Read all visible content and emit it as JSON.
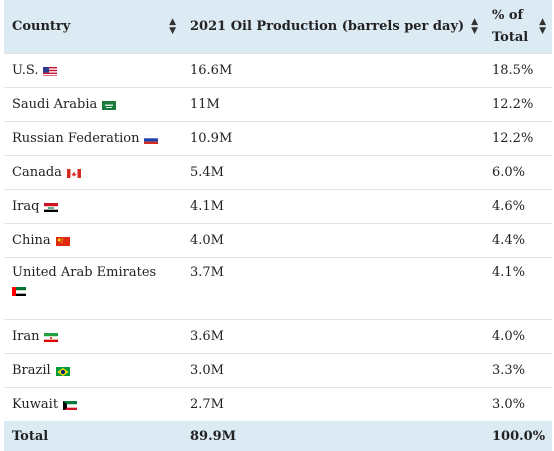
{
  "table": {
    "headers": {
      "country": "Country",
      "production": "2021 Oil Production (barrels per day)",
      "percent": "% of Total"
    },
    "rows": [
      {
        "country": "U.S.",
        "flag": "us-flag-icon",
        "production": "16.6M",
        "percent": "18.5%"
      },
      {
        "country": "Saudi Arabia",
        "flag": "saudi-arabia-flag-icon",
        "production": "11M",
        "percent": "12.2%"
      },
      {
        "country": "Russian Federation",
        "flag": "russia-flag-icon",
        "production": "10.9M",
        "percent": "12.2%"
      },
      {
        "country": "Canada",
        "flag": "canada-flag-icon",
        "production": "5.4M",
        "percent": "6.0%"
      },
      {
        "country": "Iraq",
        "flag": "iraq-flag-icon",
        "production": "4.1M",
        "percent": "4.6%"
      },
      {
        "country": "China",
        "flag": "china-flag-icon",
        "production": "4.0M",
        "percent": "4.4%"
      },
      {
        "country": "United Arab Emirates",
        "flag": "uae-flag-icon",
        "production": "3.7M",
        "percent": "4.1%"
      },
      {
        "country": "Iran",
        "flag": "iran-flag-icon",
        "production": "3.6M",
        "percent": "4.0%"
      },
      {
        "country": "Brazil",
        "flag": "brazil-flag-icon",
        "production": "3.0M",
        "percent": "3.3%"
      },
      {
        "country": "Kuwait",
        "flag": "kuwait-flag-icon",
        "production": "2.7M",
        "percent": "3.0%"
      }
    ],
    "total": {
      "label": "Total",
      "production": "89.9M",
      "percent": "100.0%"
    }
  },
  "colors": {
    "header_bg": "#dbeaf3",
    "total_bg": "#dbeaf3",
    "row_border": "#e3e3e3"
  }
}
